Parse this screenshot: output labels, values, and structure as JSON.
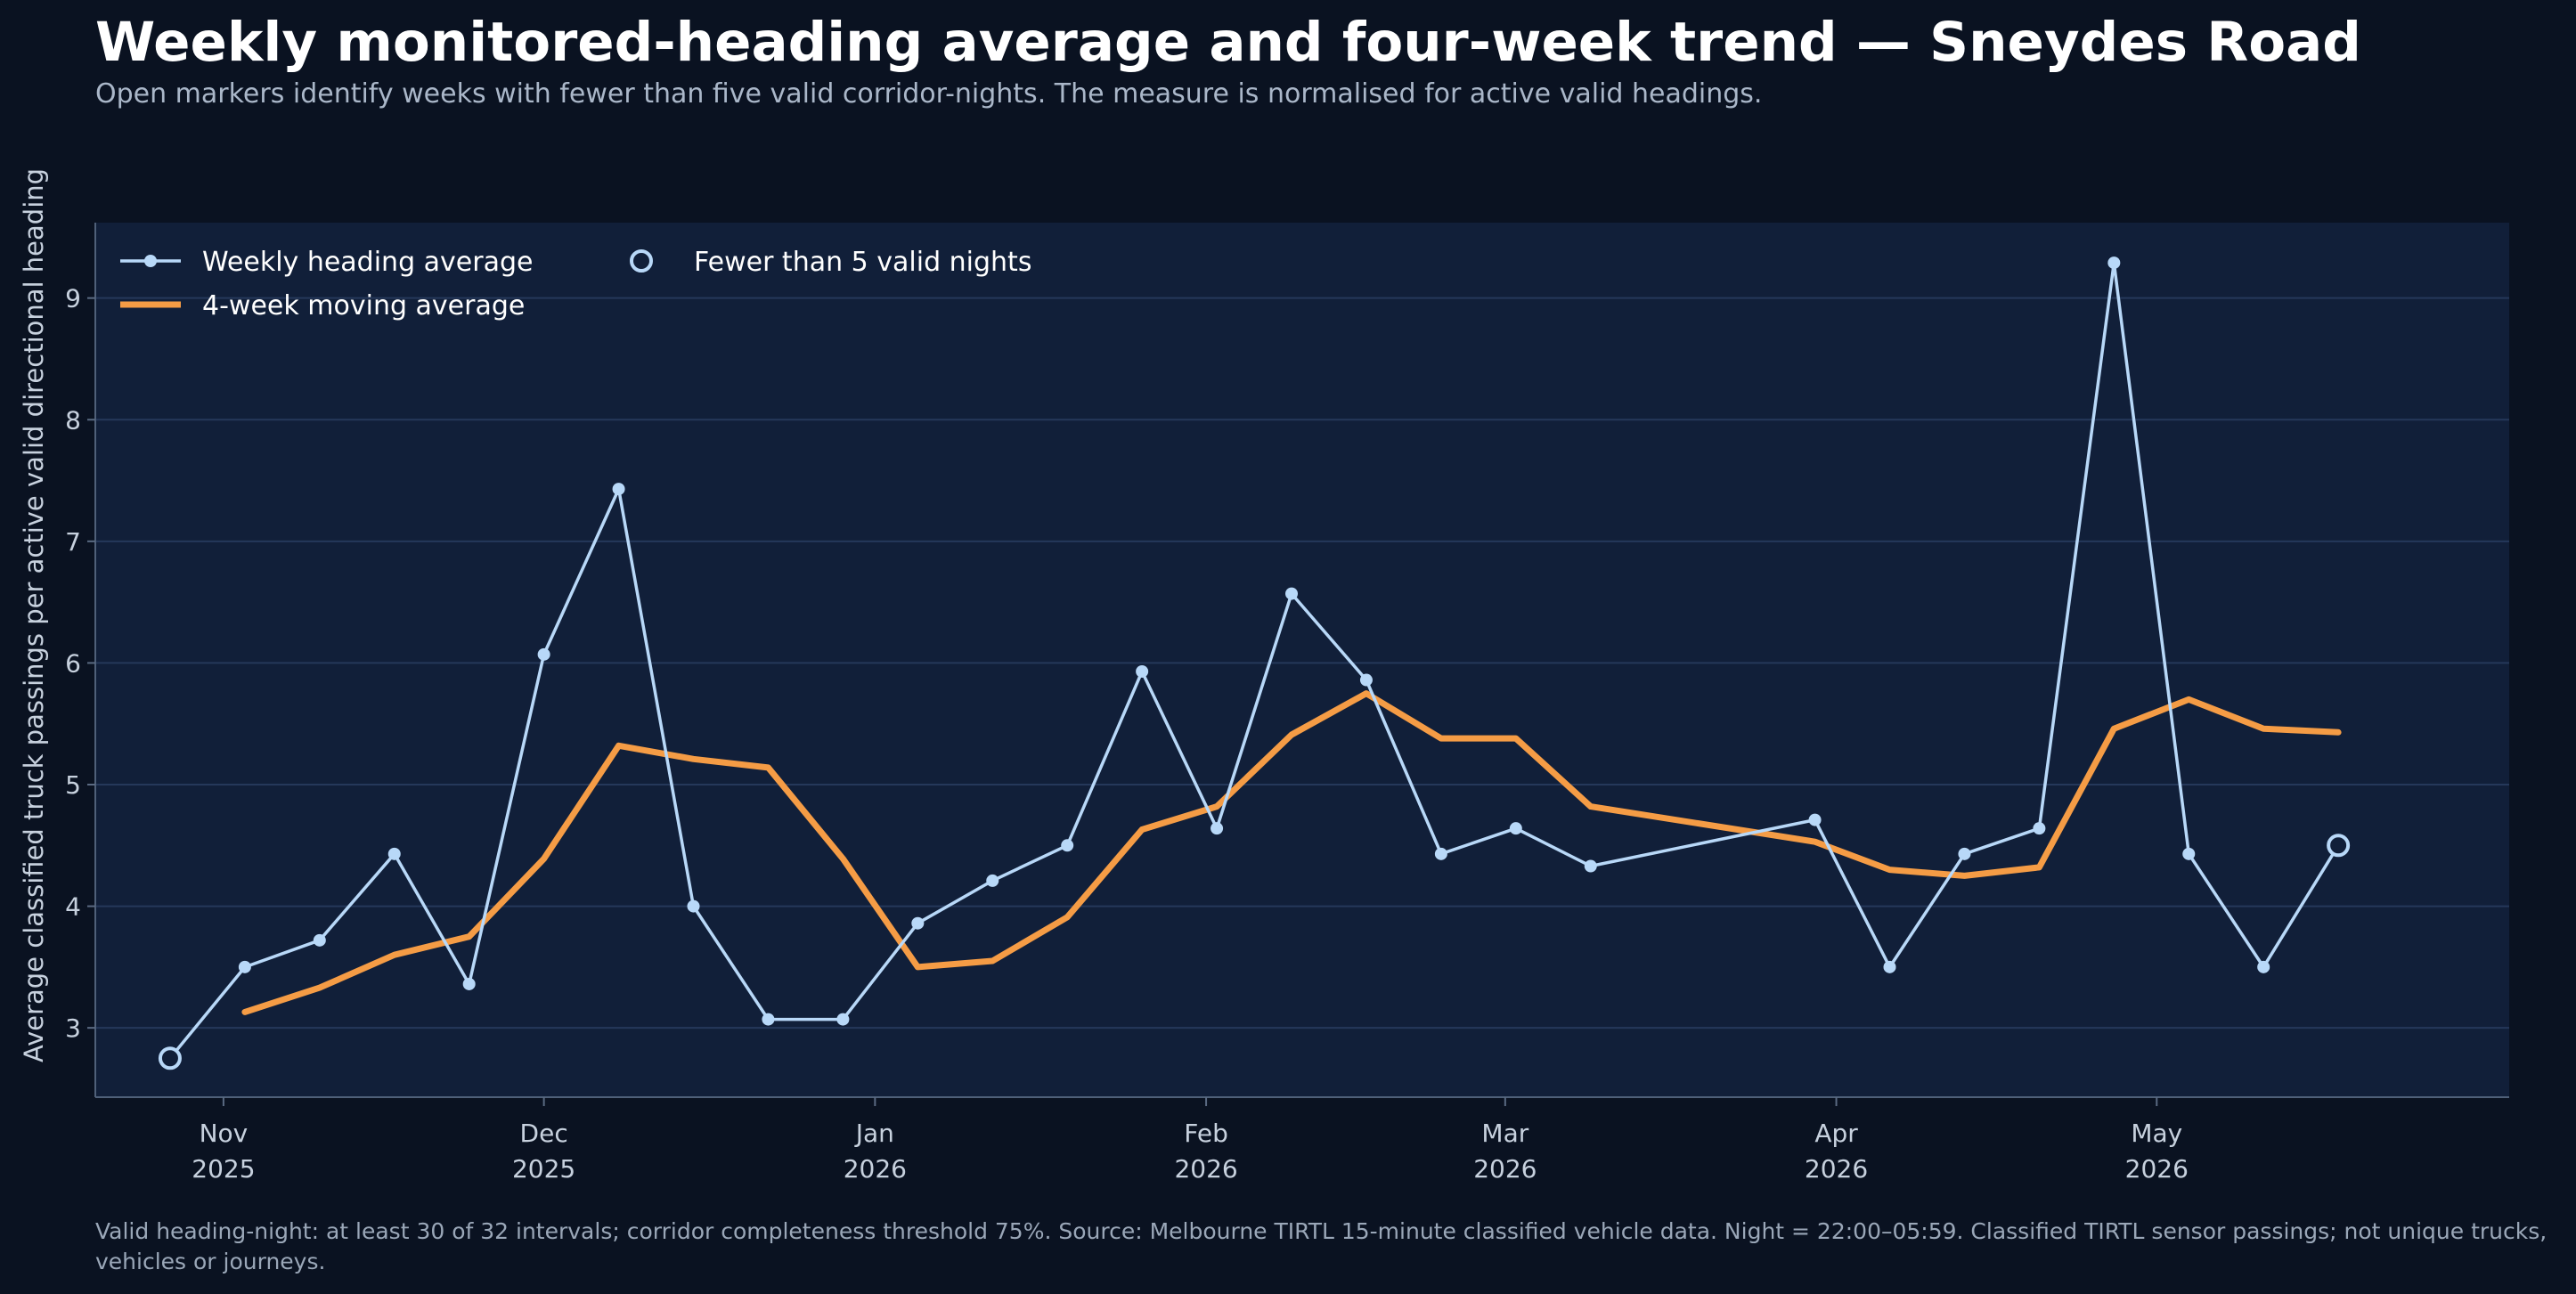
{
  "title": "Weekly monitored-heading average and four-week trend — Sneydes Road",
  "subtitle": "Open markers identify weeks with fewer than five valid corridor-nights. The measure is normalised for active valid headings.",
  "footnote": "Valid heading-night: at least 30 of 32 intervals; corridor completeness threshold 75%. Source: Melbourne TIRTL 15-minute classified vehicle data. Night = 22:00–05:59. Classified TIRTL sensor passings; not unique trucks, vehicles or journeys.",
  "colors": {
    "background": "#0a1221",
    "plot_background": "#111f39",
    "weekly": "#b8d8f8",
    "moving_average": "#f59c45",
    "grid": "#25385a",
    "tick_text": "#c7d1de"
  },
  "chart_data": {
    "type": "line",
    "ylabel": "Average classified truck passings per active valid directional heading",
    "xlabel": "",
    "ylim": [
      2.43,
      9.62
    ],
    "yticks": [
      3,
      4,
      5,
      6,
      7,
      8,
      9
    ],
    "xlim": [
      "2025-10-20",
      "2026-06-03"
    ],
    "xticks": [
      {
        "date": "2025-11-01",
        "label": [
          "Nov",
          "2025"
        ]
      },
      {
        "date": "2025-12-01",
        "label": [
          "Dec",
          "2025"
        ]
      },
      {
        "date": "2026-01-01",
        "label": [
          "Jan",
          "2026"
        ]
      },
      {
        "date": "2026-02-01",
        "label": [
          "Feb",
          "2026"
        ]
      },
      {
        "date": "2026-03-01",
        "label": [
          "Mar",
          "2026"
        ]
      },
      {
        "date": "2026-04-01",
        "label": [
          "Apr",
          "2026"
        ]
      },
      {
        "date": "2026-05-01",
        "label": [
          "May",
          "2026"
        ]
      }
    ],
    "grid": true,
    "legend_position": "top-left",
    "legend": [
      {
        "label": "Weekly heading average",
        "marker": "line-dot"
      },
      {
        "label": "4-week moving average",
        "marker": "thick-line"
      },
      {
        "label": "Fewer than 5 valid nights",
        "marker": "open-circle"
      }
    ],
    "series": [
      {
        "name": "Weekly heading average",
        "points": [
          {
            "x": "2025-10-27",
            "y": 2.75,
            "low_coverage": true
          },
          {
            "x": "2025-11-03",
            "y": 3.5
          },
          {
            "x": "2025-11-10",
            "y": 3.72
          },
          {
            "x": "2025-11-17",
            "y": 4.43
          },
          {
            "x": "2025-11-24",
            "y": 3.36
          },
          {
            "x": "2025-12-01",
            "y": 6.07
          },
          {
            "x": "2025-12-08",
            "y": 7.43
          },
          {
            "x": "2025-12-15",
            "y": 4.0
          },
          {
            "x": "2025-12-22",
            "y": 3.07
          },
          {
            "x": "2025-12-29",
            "y": 3.07
          },
          {
            "x": "2026-01-05",
            "y": 3.86
          },
          {
            "x": "2026-01-12",
            "y": 4.21
          },
          {
            "x": "2026-01-19",
            "y": 4.5
          },
          {
            "x": "2026-01-26",
            "y": 5.93
          },
          {
            "x": "2026-02-02",
            "y": 4.64
          },
          {
            "x": "2026-02-09",
            "y": 6.57
          },
          {
            "x": "2026-02-16",
            "y": 5.86
          },
          {
            "x": "2026-02-23",
            "y": 4.43
          },
          {
            "x": "2026-03-02",
            "y": 4.64
          },
          {
            "x": "2026-03-09",
            "y": 4.33
          },
          {
            "x": "2026-03-30",
            "y": 4.71
          },
          {
            "x": "2026-04-06",
            "y": 3.5
          },
          {
            "x": "2026-04-13",
            "y": 4.43
          },
          {
            "x": "2026-04-20",
            "y": 4.64
          },
          {
            "x": "2026-04-27",
            "y": 9.29
          },
          {
            "x": "2026-05-04",
            "y": 4.43
          },
          {
            "x": "2026-05-11",
            "y": 3.5
          },
          {
            "x": "2026-05-18",
            "y": 4.5,
            "low_coverage": true
          }
        ]
      },
      {
        "name": "4-week moving average",
        "points": [
          {
            "x": "2025-11-03",
            "y": 3.13
          },
          {
            "x": "2025-11-10",
            "y": 3.33
          },
          {
            "x": "2025-11-17",
            "y": 3.6
          },
          {
            "x": "2025-11-24",
            "y": 3.75
          },
          {
            "x": "2025-12-01",
            "y": 4.39
          },
          {
            "x": "2025-12-08",
            "y": 5.32
          },
          {
            "x": "2025-12-15",
            "y": 5.21
          },
          {
            "x": "2025-12-22",
            "y": 5.14
          },
          {
            "x": "2025-12-29",
            "y": 4.39
          },
          {
            "x": "2026-01-05",
            "y": 3.5
          },
          {
            "x": "2026-01-12",
            "y": 3.55
          },
          {
            "x": "2026-01-19",
            "y": 3.91
          },
          {
            "x": "2026-01-26",
            "y": 4.63
          },
          {
            "x": "2026-02-02",
            "y": 4.82
          },
          {
            "x": "2026-02-09",
            "y": 5.41
          },
          {
            "x": "2026-02-16",
            "y": 5.75
          },
          {
            "x": "2026-02-23",
            "y": 5.38
          },
          {
            "x": "2026-03-02",
            "y": 5.38
          },
          {
            "x": "2026-03-09",
            "y": 4.82
          },
          {
            "x": "2026-03-30",
            "y": 4.53
          },
          {
            "x": "2026-04-06",
            "y": 4.3
          },
          {
            "x": "2026-04-13",
            "y": 4.25
          },
          {
            "x": "2026-04-20",
            "y": 4.32
          },
          {
            "x": "2026-04-27",
            "y": 5.46
          },
          {
            "x": "2026-05-04",
            "y": 5.7
          },
          {
            "x": "2026-05-11",
            "y": 5.46
          },
          {
            "x": "2026-05-18",
            "y": 5.43
          }
        ]
      }
    ]
  }
}
